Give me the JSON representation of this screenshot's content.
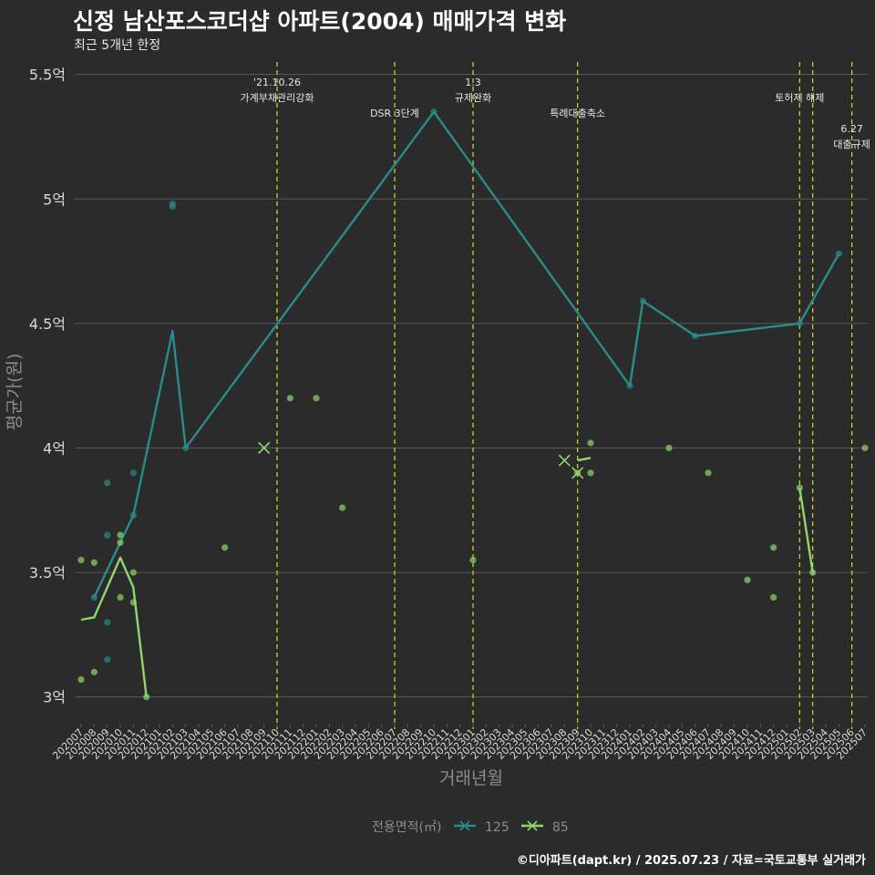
{
  "title": "신정 남산포스코더샵 아파트(2004) 매매가격 변화",
  "subtitle": "최근 5개년 한정",
  "caption": "©디아파트(dapt.kr) / 2025.07.23 / 자료=국토교통부 실거래가",
  "colors": {
    "background": "#2b2b2b",
    "grid": "#5a5a5a",
    "text": "#d9d9d9",
    "event_line": "#d9d92b",
    "series_125": "#2a8c8a",
    "series_85": "#8fd76c"
  },
  "chart_data": {
    "type": "line",
    "xlabel": "거래년월",
    "ylabel": "평균가(원)",
    "ylim": [
      2.9,
      5.55
    ],
    "yticks": [
      3,
      3.5,
      4,
      4.5,
      5,
      5.5
    ],
    "ytick_labels": [
      "3억",
      "3.5억",
      "4억",
      "4.5억",
      "5억",
      "5.5억"
    ],
    "categories": [
      "202007",
      "202008",
      "202009",
      "202010",
      "202011",
      "202012",
      "202101",
      "202102",
      "202103",
      "202104",
      "202105",
      "202106",
      "202107",
      "202108",
      "202109",
      "202110",
      "202111",
      "202112",
      "202201",
      "202202",
      "202203",
      "202204",
      "202205",
      "202206",
      "202207",
      "202208",
      "202209",
      "202210",
      "202211",
      "202212",
      "202301",
      "202302",
      "202303",
      "202304",
      "202305",
      "202306",
      "202307",
      "202308",
      "202309",
      "202310",
      "202311",
      "202312",
      "202401",
      "202402",
      "202403",
      "202404",
      "202405",
      "202406",
      "202407",
      "202408",
      "202409",
      "202410",
      "202411",
      "202412",
      "202501",
      "202502",
      "202503",
      "202504",
      "202505",
      "202506",
      "202507"
    ],
    "legend": {
      "title": "전용면적(㎡)",
      "position": "bottom",
      "entries": [
        "125",
        "85"
      ]
    },
    "series": [
      {
        "name": "125",
        "line": [
          [
            "202008",
            3.4
          ],
          [
            "202011",
            3.73
          ],
          [
            "202102",
            4.47
          ],
          [
            "202103",
            4.0
          ],
          [
            "202210",
            5.35
          ],
          [
            "202401",
            4.25
          ],
          [
            "202402",
            4.59
          ],
          [
            "202406",
            4.45
          ],
          [
            "202502",
            4.5
          ],
          [
            "202505",
            4.78
          ]
        ],
        "points": [
          [
            "202008",
            3.4
          ],
          [
            "202009",
            3.3
          ],
          [
            "202009",
            3.15
          ],
          [
            "202009",
            3.65
          ],
          [
            "202009",
            3.86
          ],
          [
            "202011",
            3.73
          ],
          [
            "202011",
            3.9
          ],
          [
            "202102",
            4.98
          ],
          [
            "202102",
            4.97
          ],
          [
            "202103",
            4.0
          ],
          [
            "202210",
            5.35
          ],
          [
            "202401",
            4.25
          ],
          [
            "202402",
            4.59
          ],
          [
            "202406",
            4.45
          ],
          [
            "202502",
            4.5
          ],
          [
            "202505",
            4.78
          ]
        ],
        "markers": [
          [
            "202109",
            4.0
          ]
        ]
      },
      {
        "name": "85",
        "line": [
          [
            "202007",
            3.31
          ],
          [
            "202008",
            3.32
          ],
          [
            "202010",
            3.56
          ],
          [
            "202011",
            3.44
          ],
          [
            "202012",
            3.0
          ]
        ],
        "points": [
          [
            "202007",
            3.55
          ],
          [
            "202007",
            3.07
          ],
          [
            "202008",
            3.54
          ],
          [
            "202008",
            3.1
          ],
          [
            "202010",
            3.65
          ],
          [
            "202010",
            3.62
          ],
          [
            "202010",
            3.4
          ],
          [
            "202011",
            3.5
          ],
          [
            "202011",
            3.38
          ],
          [
            "202012",
            3.0
          ],
          [
            "202111",
            4.2
          ],
          [
            "202201",
            4.2
          ],
          [
            "202203",
            3.76
          ],
          [
            "202106",
            3.6
          ],
          [
            "202301",
            3.55
          ],
          [
            "202309",
            3.9
          ],
          [
            "202310",
            3.9
          ],
          [
            "202310",
            4.02
          ],
          [
            "202404",
            4.0
          ],
          [
            "202407",
            3.9
          ],
          [
            "202410",
            3.47
          ],
          [
            "202412",
            3.6
          ],
          [
            "202412",
            3.4
          ],
          [
            "202502",
            3.84
          ],
          [
            "202503",
            3.5
          ],
          [
            "202507",
            4.0
          ]
        ],
        "segments": [
          [
            [
              "202309",
              3.95
            ],
            [
              "202310",
              3.96
            ]
          ],
          [
            [
              "202502",
              3.84
            ],
            [
              "202503",
              3.5
            ]
          ]
        ],
        "markers": [
          [
            "202109",
            4.0
          ],
          [
            "202308",
            3.95
          ],
          [
            "202309",
            3.9
          ]
        ]
      }
    ],
    "events": [
      {
        "x": "202110",
        "label": "'21.10.26\n가계부채관리강화",
        "level": 0
      },
      {
        "x": "202207",
        "label": "DSR 3단계",
        "level": 2
      },
      {
        "x": "202301",
        "label": "1.3\n규제완화",
        "level": 0
      },
      {
        "x": "202309",
        "label": "특례대출축소",
        "level": 2
      },
      {
        "x": "202502",
        "label": "토허제 해제",
        "level": 1
      },
      {
        "x": "202503",
        "label": "",
        "level": 0
      },
      {
        "x": "202506",
        "label": "6.27\n대출규제",
        "level": 3
      }
    ]
  }
}
